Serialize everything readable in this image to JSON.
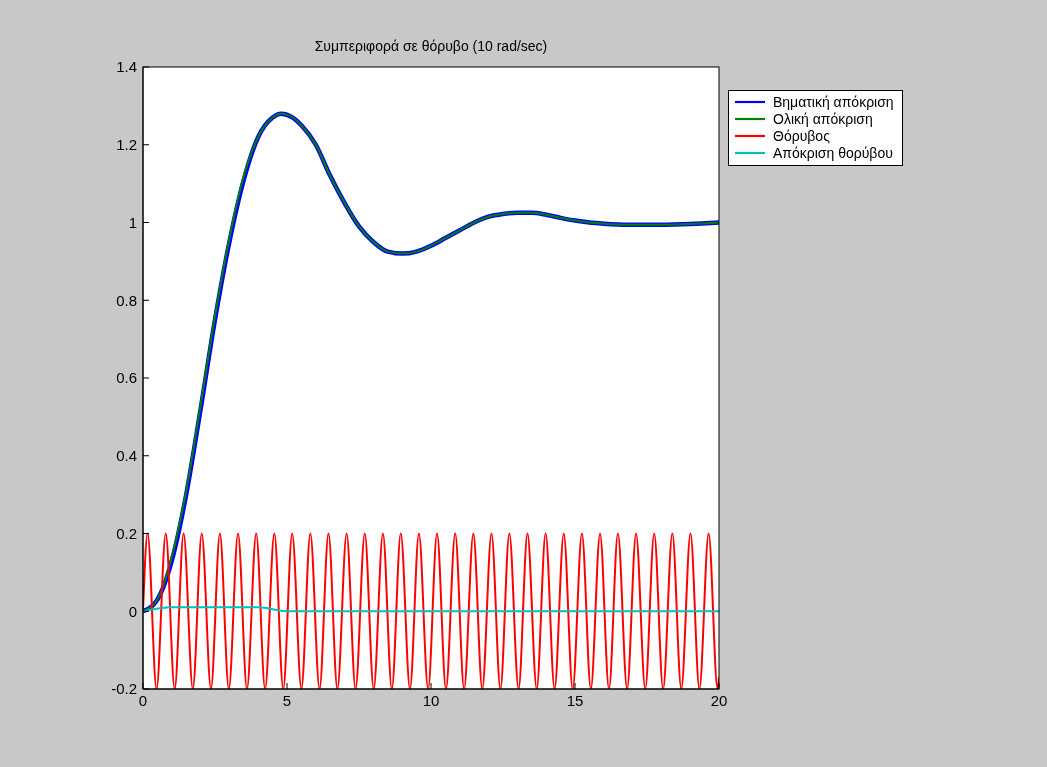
{
  "chart_data": {
    "type": "line",
    "title": "Συμπεριφορά σε θόρυβο (10 rad/sec)",
    "xlim": [
      0,
      20
    ],
    "xticks": [
      0,
      5,
      10,
      15,
      20
    ],
    "ylim": [
      -0.2,
      1.4
    ],
    "yticks": [
      -0.2,
      0,
      0.2,
      0.4,
      0.6,
      0.8,
      1,
      1.2,
      1.4
    ],
    "legend": "top right",
    "marker": "none",
    "line_style": "solid",
    "series": [
      {
        "name": "Βηματική απόκριση",
        "color": "#0000ff",
        "x": [
          0,
          0.5,
          1,
          1.5,
          2,
          2.5,
          3,
          3.5,
          4,
          4.5,
          4.8,
          5.2,
          5.5,
          6,
          6.5,
          7,
          7.5,
          8,
          8.5,
          9,
          9.5,
          10,
          10.5,
          11,
          11.5,
          12,
          12.5,
          13,
          13.5,
          14,
          14.5,
          15,
          15.5,
          16,
          16.5,
          17,
          18,
          19,
          20
        ],
        "values": [
          0,
          0.03,
          0.13,
          0.3,
          0.52,
          0.75,
          0.95,
          1.11,
          1.22,
          1.27,
          1.28,
          1.27,
          1.25,
          1.2,
          1.12,
          1.05,
          0.99,
          0.95,
          0.925,
          0.92,
          0.925,
          0.94,
          0.96,
          0.98,
          1.0,
          1.015,
          1.022,
          1.025,
          1.025,
          1.02,
          1.012,
          1.005,
          1.0,
          0.997,
          0.995,
          0.994,
          0.994,
          0.996,
          1.0
        ]
      },
      {
        "name": "Ολική απόκριση",
        "color": "#008000",
        "x": [
          0,
          0.5,
          1,
          1.5,
          2,
          2.5,
          3,
          3.5,
          4,
          4.5,
          4.8,
          5.2,
          5.5,
          6,
          6.5,
          7,
          7.5,
          8,
          8.5,
          9,
          9.5,
          10,
          10.5,
          11,
          11.5,
          12,
          12.5,
          13,
          13.5,
          14,
          14.5,
          15,
          15.5,
          16,
          16.5,
          17,
          18,
          19,
          20
        ],
        "values": [
          0,
          0.03,
          0.14,
          0.31,
          0.53,
          0.76,
          0.96,
          1.12,
          1.22,
          1.27,
          1.28,
          1.27,
          1.25,
          1.2,
          1.12,
          1.05,
          0.99,
          0.95,
          0.925,
          0.92,
          0.925,
          0.94,
          0.96,
          0.98,
          1.0,
          1.015,
          1.022,
          1.025,
          1.025,
          1.02,
          1.012,
          1.005,
          1.0,
          0.997,
          0.995,
          0.994,
          0.994,
          0.996,
          1.0
        ]
      },
      {
        "name": "Θόρυβος",
        "color": "#ff0000",
        "x": [
          0,
          0.16,
          0.47,
          0.79,
          1.1,
          1.41,
          1.73,
          2.04,
          2.36,
          2.67,
          2.98,
          3.3,
          3.61,
          3.93,
          4.24,
          4.56,
          4.87,
          5.18,
          5.5,
          5.81,
          6.13,
          6.44,
          6.75,
          7.07,
          7.38,
          7.7,
          8.01,
          8.33,
          8.64,
          8.95,
          9.27,
          9.58,
          9.9,
          10.21,
          10.52,
          10.84,
          11.15,
          11.47,
          11.78,
          12.1,
          12.41,
          12.72,
          13.04,
          13.35,
          13.67,
          13.98,
          14.29,
          14.61,
          14.92,
          15.24,
          15.55,
          15.87,
          16.18,
          16.49,
          16.81,
          17.12,
          17.44,
          17.75,
          18.06,
          18.38,
          18.69,
          19.01,
          19.32,
          19.64,
          19.95,
          20
        ],
        "values": [
          0,
          0.2,
          -0.2,
          0.2,
          -0.2,
          0.2,
          -0.2,
          0.2,
          -0.2,
          0.2,
          -0.2,
          0.2,
          -0.2,
          0.2,
          -0.2,
          0.2,
          -0.2,
          0.2,
          -0.2,
          0.2,
          -0.2,
          0.2,
          -0.2,
          0.2,
          -0.2,
          0.2,
          -0.2,
          0.2,
          -0.2,
          0.2,
          -0.2,
          0.2,
          -0.2,
          0.2,
          -0.2,
          0.2,
          -0.2,
          0.2,
          -0.2,
          0.2,
          -0.2,
          0.2,
          -0.2,
          0.2,
          -0.2,
          0.2,
          -0.2,
          0.2,
          -0.2,
          0.2,
          -0.2,
          0.2,
          -0.2,
          0.2,
          -0.2,
          0.2,
          -0.2,
          0.2,
          -0.2,
          0.2,
          -0.2,
          0.2,
          -0.2,
          0.2,
          -0.2,
          -0.17
        ]
      },
      {
        "name": "Απόκριση θορύβου",
        "color": "#00c0c0",
        "x": [
          0,
          1,
          2,
          3,
          4,
          5,
          6,
          7,
          8,
          9,
          10,
          12,
          14,
          16,
          20
        ],
        "values": [
          0,
          0.01,
          0.01,
          0.01,
          0.01,
          0,
          0,
          0,
          0,
          0,
          0,
          0,
          0,
          0,
          0
        ]
      }
    ]
  }
}
